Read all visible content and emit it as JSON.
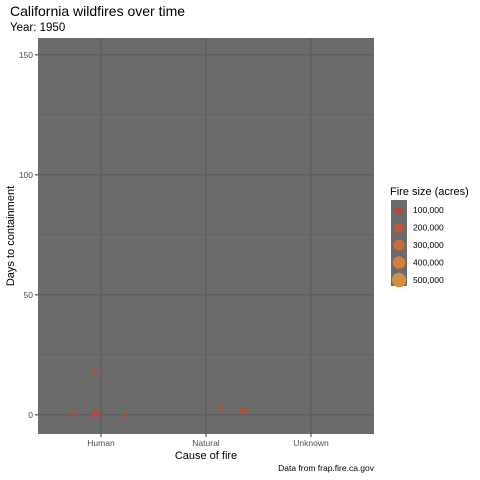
{
  "chart_data": {
    "type": "scatter",
    "title": "California wildfires over time",
    "subtitle": "Year: 1950",
    "xlabel": "Cause of fire",
    "ylabel": "Days to containment",
    "categories": [
      "Human",
      "Natural",
      "Unknown"
    ],
    "ylim": [
      -8,
      157
    ],
    "yticks": [
      0,
      50,
      100,
      150
    ],
    "grid": true,
    "legend": {
      "title": "Fire size (acres)",
      "placement": "right",
      "entries": [
        {
          "label": "100,000",
          "value": 100000,
          "color": "#c8402f"
        },
        {
          "label": "200,000",
          "value": 200000,
          "color": "#ca5533"
        },
        {
          "label": "300,000",
          "value": 300000,
          "color": "#cd6a38"
        },
        {
          "label": "400,000",
          "value": 400000,
          "color": "#d17e3e"
        },
        {
          "label": "500,000",
          "value": 500000,
          "color": "#d38f44"
        }
      ]
    },
    "points": [
      {
        "category": "Human",
        "offset": -0.27,
        "y": 0.5,
        "size": 5000
      },
      {
        "category": "Human",
        "offset": -0.06,
        "y": 18,
        "size": 5000
      },
      {
        "category": "Human",
        "offset": -0.05,
        "y": 1.5,
        "size": 5000
      },
      {
        "category": "Human",
        "offset": -0.07,
        "y": 0,
        "size": 5000
      },
      {
        "category": "Human",
        "offset": -0.02,
        "y": 0,
        "size": 5000
      },
      {
        "category": "Human",
        "offset": 0.23,
        "y": 0,
        "size": 5000
      },
      {
        "category": "Natural",
        "offset": 0.14,
        "y": 3.5,
        "size": 5000
      },
      {
        "category": "Natural",
        "offset": 0.34,
        "y": 2,
        "size": 5000
      },
      {
        "category": "Natural",
        "offset": 0.38,
        "y": 1.5,
        "size": 5000
      }
    ],
    "panel_color": "#6b6b6b",
    "grid_color": "#5a5a5a",
    "caption": "Data from frap.fire.ca.gov"
  }
}
